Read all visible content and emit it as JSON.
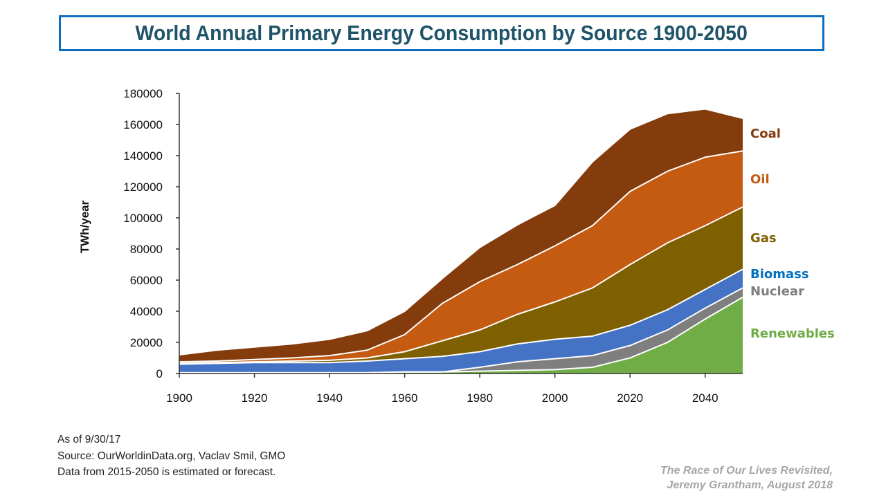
{
  "title": "World Annual Primary Energy Consumption by Source 1900-2050",
  "notes": {
    "as_of": "As of 9/30/17",
    "source": "Source: OurWorldinData.org, Vaclav Smil, GMO",
    "forecast": "Data from 2015-2050 is estimated or forecast."
  },
  "credit": {
    "line1": "The Race of Our Lives Revisited,",
    "line2": "Jeremy Grantham, August 2018"
  },
  "chart_data": {
    "type": "area",
    "stacked": true,
    "title": "World Annual Primary Energy Consumption by Source 1900-2050",
    "xlabel": "",
    "ylabel": "TWh/year",
    "xlim": [
      1900,
      2050
    ],
    "ylim": [
      0,
      180000
    ],
    "x_ticks": [
      "1900",
      "1920",
      "1940",
      "1960",
      "1980",
      "2000",
      "2020",
      "2040"
    ],
    "y_ticks": [
      "0",
      "20000",
      "40000",
      "60000",
      "80000",
      "100000",
      "120000",
      "140000",
      "160000",
      "180000"
    ],
    "x": [
      1900,
      1910,
      1920,
      1930,
      1940,
      1950,
      1960,
      1970,
      1980,
      1990,
      2000,
      2010,
      2020,
      2030,
      2040,
      2050
    ],
    "grid": false,
    "legend": "right (inline labels)",
    "series": [
      {
        "name": "Renewables",
        "color": "#70AD47",
        "label_color": "#70AD47",
        "values": [
          500,
          500,
          500,
          500,
          500,
          500,
          1000,
          1000,
          1500,
          2000,
          2500,
          4000,
          10000,
          20000,
          35000,
          49000
        ]
      },
      {
        "name": "Nuclear",
        "color": "#7F7F7F",
        "label_color": "#7F7F7F",
        "values": [
          0,
          0,
          0,
          0,
          0,
          0,
          0,
          0,
          2500,
          5500,
          7000,
          7500,
          8000,
          8000,
          7000,
          6000
        ]
      },
      {
        "name": "Biomass",
        "color": "#4472C4",
        "label_color": "#0070C0",
        "values": [
          5500,
          6000,
          6500,
          6500,
          6500,
          7500,
          8500,
          10000,
          10000,
          11500,
          12500,
          12500,
          13000,
          13000,
          12000,
          12000
        ]
      },
      {
        "name": "Gas",
        "color": "#7F6000",
        "label_color": "#7F6000",
        "values": [
          500,
          500,
          500,
          1000,
          1500,
          2000,
          4500,
          10000,
          14000,
          19000,
          24000,
          31000,
          39000,
          43000,
          41000,
          40000
        ]
      },
      {
        "name": "Oil",
        "color": "#C55A11",
        "label_color": "#C55A11",
        "values": [
          1000,
          1000,
          1500,
          2000,
          3000,
          5000,
          11000,
          24000,
          31000,
          32000,
          36000,
          40000,
          47000,
          46000,
          44000,
          36000
        ]
      },
      {
        "name": "Coal",
        "color": "#843C0C",
        "label_color": "#843C0C",
        "values": [
          4500,
          7000,
          8000,
          9000,
          10500,
          12500,
          15000,
          16000,
          22000,
          25500,
          26000,
          41000,
          40000,
          37000,
          31000,
          21000
        ]
      }
    ]
  }
}
